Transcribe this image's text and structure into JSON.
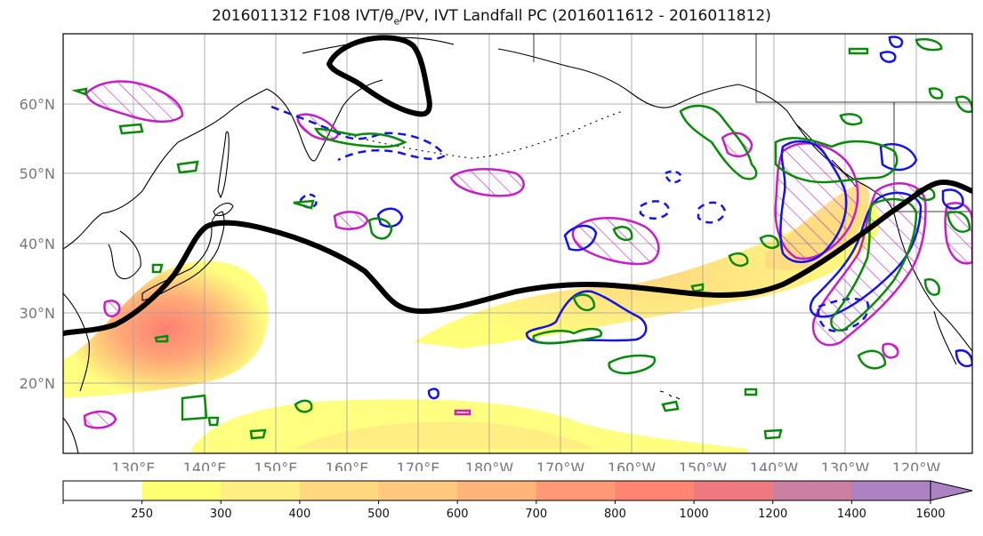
{
  "title": {
    "prefix": "2016011312 F108 IVT/θ",
    "sub": "e",
    "suffix": "/PV, IVT Landfall PC (2016011612 - 2016011812)"
  },
  "map": {
    "lat_labels": [
      "60°N",
      "50°N",
      "40°N",
      "30°N",
      "20°N"
    ],
    "lon_labels": [
      "130°E",
      "140°E",
      "150°E",
      "160°E",
      "170°E",
      "180°W",
      "170°W",
      "160°W",
      "150°W",
      "140°W",
      "130°W",
      "120°W"
    ]
  },
  "colorbar": {
    "ticks": [
      "250",
      "300",
      "400",
      "500",
      "600",
      "700",
      "800",
      "1000",
      "1200",
      "1400",
      "1600"
    ],
    "colors": [
      "#ffffff",
      "#ffff74",
      "#ffee82",
      "#ffd880",
      "#ffc87e",
      "#ffb479",
      "#ff9874",
      "#ff8472",
      "#ee7a80",
      "#cc7fa0",
      "#ad82c3",
      "#ad82c3"
    ]
  },
  "colors": {
    "ivt_low": "#ffff74",
    "ivt_high": "#ff7f72",
    "contour_magenta": "#c81ec8",
    "contour_blue": "#1414e6",
    "contour_green": "#0a8a0a",
    "front_black": "#000000"
  }
}
